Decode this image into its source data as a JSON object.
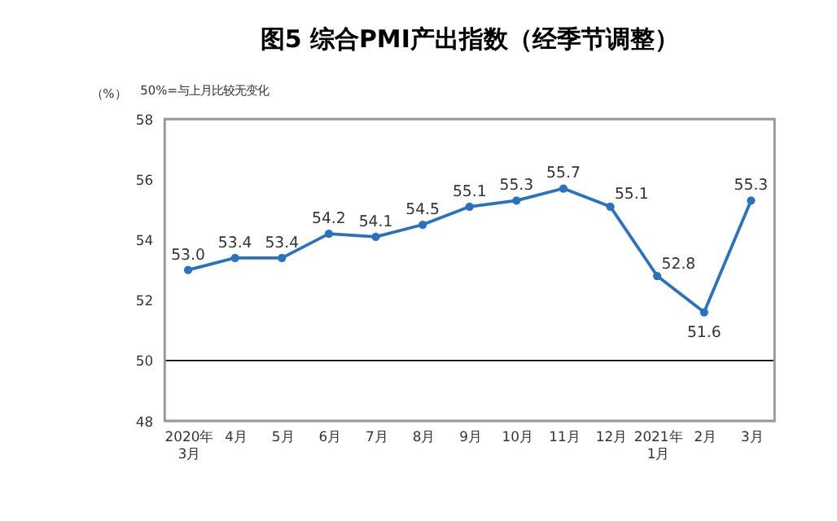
{
  "chart_data": {
    "type": "line",
    "title": "图5 综合PMI产出指数（经季节调整）",
    "ylabel": "（%）",
    "annotations": [
      "50%=与上月比较无变化"
    ],
    "categories": [
      "2020年\n3月",
      "4月",
      "5月",
      "6月",
      "7月",
      "8月",
      "9月",
      "10月",
      "11月",
      "12月",
      "2021年\n1月",
      "2月",
      "3月"
    ],
    "series": [
      {
        "color": "#2a72c0",
        "values": [
          53.0,
          53.4,
          53.4,
          54.2,
          54.1,
          54.5,
          55.1,
          55.3,
          55.7,
          55.1,
          52.8,
          51.6,
          55.3
        ]
      }
    ],
    "value_labels": [
      "53.0",
      "53.4",
      "53.4",
      "54.2",
      "54.1",
      "54.5",
      "55.1",
      "55.3",
      "55.7",
      "55.1",
      "52.8",
      "51.6",
      "55.3"
    ],
    "ylim": [
      48,
      58
    ],
    "yticks": [
      48,
      50,
      52,
      54,
      56,
      58
    ],
    "ref_lines": [
      {
        "axis": "y",
        "value": 50,
        "color": "#000000"
      }
    ],
    "grid": false,
    "legend": false,
    "marker": "circle",
    "line_style": "solid"
  }
}
